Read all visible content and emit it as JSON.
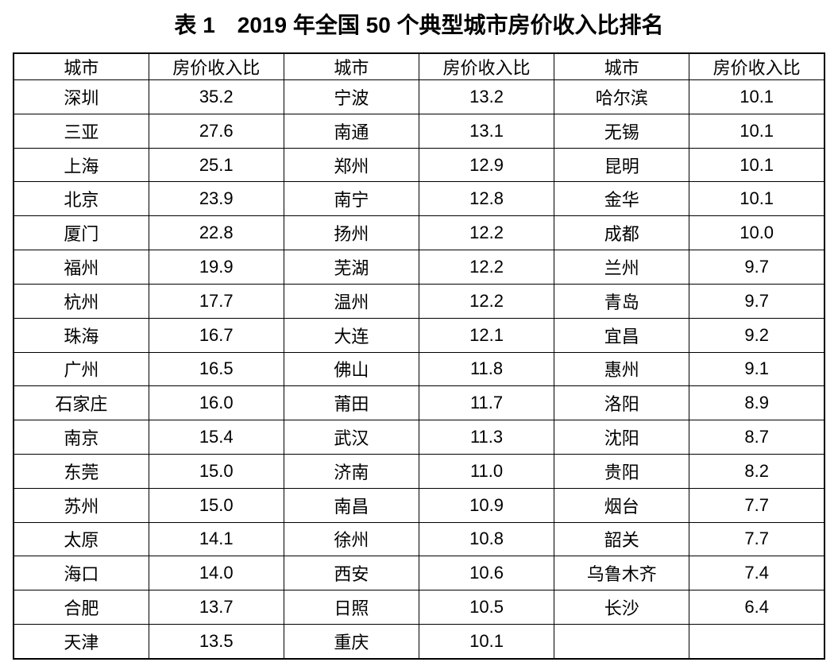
{
  "title": "表 1　2019 年全国 50 个典型城市房价收入比排名",
  "colors": {
    "text": "#000000",
    "background": "#ffffff",
    "border": "#000000"
  },
  "table": {
    "column_headers": [
      "城市",
      "房价收入比",
      "城市",
      "房价收入比",
      "城市",
      "房价收入比"
    ],
    "rows": [
      [
        "深圳",
        "35.2",
        "宁波",
        "13.2",
        "哈尔滨",
        "10.1"
      ],
      [
        "三亚",
        "27.6",
        "南通",
        "13.1",
        "无锡",
        "10.1"
      ],
      [
        "上海",
        "25.1",
        "郑州",
        "12.9",
        "昆明",
        "10.1"
      ],
      [
        "北京",
        "23.9",
        "南宁",
        "12.8",
        "金华",
        "10.1"
      ],
      [
        "厦门",
        "22.8",
        "扬州",
        "12.2",
        "成都",
        "10.0"
      ],
      [
        "福州",
        "19.9",
        "芜湖",
        "12.2",
        "兰州",
        "9.7"
      ],
      [
        "杭州",
        "17.7",
        "温州",
        "12.2",
        "青岛",
        "9.7"
      ],
      [
        "珠海",
        "16.7",
        "大连",
        "12.1",
        "宜昌",
        "9.2"
      ],
      [
        "广州",
        "16.5",
        "佛山",
        "11.8",
        "惠州",
        "9.1"
      ],
      [
        "石家庄",
        "16.0",
        "莆田",
        "11.7",
        "洛阳",
        "8.9"
      ],
      [
        "南京",
        "15.4",
        "武汉",
        "11.3",
        "沈阳",
        "8.7"
      ],
      [
        "东莞",
        "15.0",
        "济南",
        "11.0",
        "贵阳",
        "8.2"
      ],
      [
        "苏州",
        "15.0",
        "南昌",
        "10.9",
        "烟台",
        "7.7"
      ],
      [
        "太原",
        "14.1",
        "徐州",
        "10.8",
        "韶关",
        "7.7"
      ],
      [
        "海口",
        "14.0",
        "西安",
        "10.6",
        "乌鲁木齐",
        "7.4"
      ],
      [
        "合肥",
        "13.7",
        "日照",
        "10.5",
        "长沙",
        "6.4"
      ],
      [
        "天津",
        "13.5",
        "重庆",
        "10.1",
        "",
        ""
      ]
    ]
  }
}
